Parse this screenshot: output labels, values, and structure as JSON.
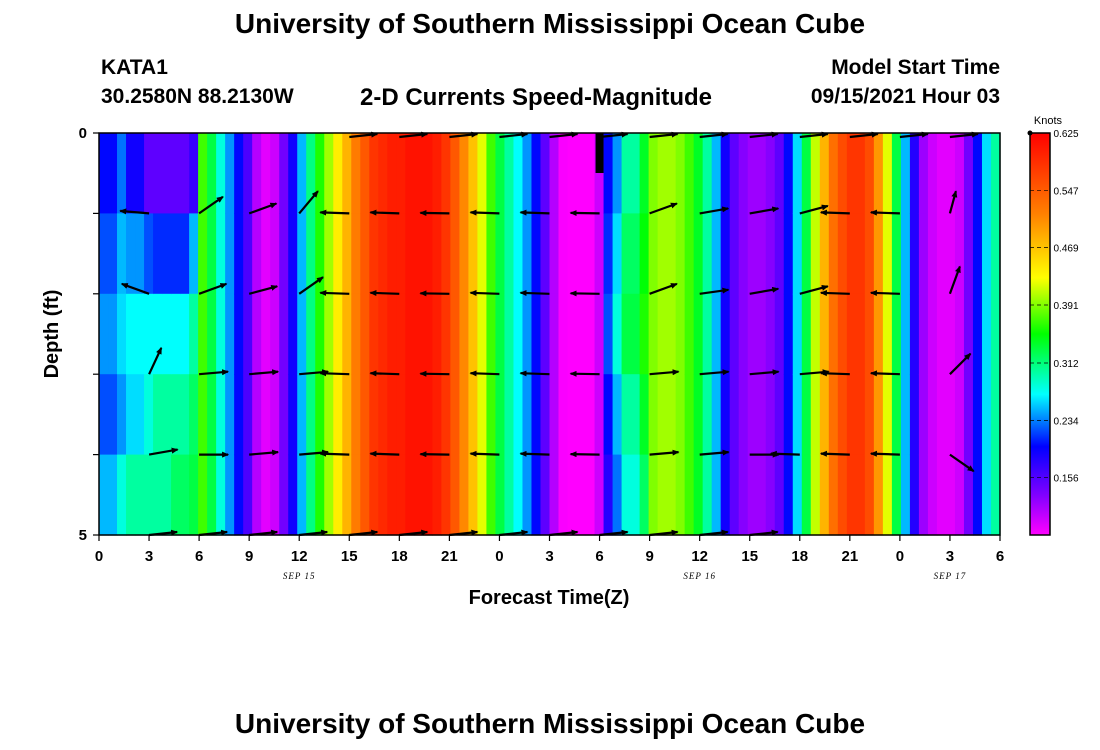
{
  "header": {
    "title": "University of Southern Mississippi Ocean Cube",
    "station": "KATA1",
    "coordinates": "30.2580N  88.2130W",
    "subtitle": "2-D Currents Speed-Magnitude",
    "model_start_label": "Model Start Time",
    "model_start_value": "09/15/2021 Hour 03"
  },
  "footer": {
    "title": "University of Southern Mississippi Ocean Cube"
  },
  "chart_data": {
    "type": "heatmap",
    "title": "2-D Currents Speed-Magnitude",
    "xlabel": "Forecast Time(Z)",
    "ylabel": "Depth (ft)",
    "x_ticks": [
      "0",
      "3",
      "6",
      "9",
      "12",
      "15",
      "18",
      "21",
      "0",
      "3",
      "6",
      "9",
      "12",
      "15",
      "18",
      "21",
      "0",
      "3",
      "6"
    ],
    "date_labels": [
      {
        "text": "SEP 15",
        "hour": 12
      },
      {
        "text": "SEP 16",
        "hour": 36
      },
      {
        "text": "SEP 17",
        "hour": 51
      }
    ],
    "xlim": [
      0,
      54
    ],
    "ylim": [
      0,
      5
    ],
    "y_ticks": [
      "0",
      "5"
    ],
    "depth_bins": 5,
    "colorbar": {
      "label": "Knots",
      "range": [
        0.078,
        0.625
      ],
      "tick_labels": [
        "0.625",
        "0.547",
        "0.469",
        "0.391",
        "0.312",
        "0.234",
        "0.156"
      ]
    },
    "speed_profile": [
      0.28,
      0.3,
      0.25,
      0.2,
      0.17,
      0.17,
      0.18,
      0.22,
      0.27,
      0.3,
      0.34,
      0.37,
      0.33,
      0.28,
      0.24,
      0.2,
      0.16,
      0.11,
      0.09,
      0.1,
      0.14,
      0.19,
      0.25,
      0.31,
      0.36,
      0.4,
      0.44,
      0.48,
      0.52,
      0.55,
      0.58,
      0.59,
      0.6,
      0.6,
      0.61,
      0.61,
      0.61,
      0.6,
      0.58,
      0.55,
      0.51,
      0.47,
      0.42,
      0.37,
      0.33,
      0.3,
      0.27,
      0.24,
      0.2,
      0.15,
      0.11,
      0.08,
      0.06,
      0.06,
      0.07,
      0.1,
      0.18,
      0.27,
      0.33,
      0.36,
      0.38,
      0.39,
      0.4,
      0.4,
      0.39,
      0.37,
      0.34,
      0.3,
      0.25,
      0.19,
      0.15,
      0.13,
      0.12,
      0.12,
      0.13,
      0.15,
      0.2,
      0.26,
      0.33,
      0.41,
      0.48,
      0.53,
      0.56,
      0.58,
      0.58,
      0.56,
      0.5,
      0.42,
      0.33,
      0.25,
      0.18,
      0.12,
      0.1,
      0.09,
      0.09,
      0.1,
      0.14,
      0.2,
      0.26,
      0.3
    ],
    "left_region": {
      "hour_range": [
        0,
        6
      ],
      "rows": [
        [
          0.2,
          0.23,
          0.19,
          0.15,
          0.15,
          0.15,
          0.17
        ],
        [
          0.22,
          0.25,
          0.24,
          0.22,
          0.21,
          0.21,
          0.25
        ],
        [
          0.24,
          0.26,
          0.27,
          0.27,
          0.27,
          0.27,
          0.3
        ],
        [
          0.22,
          0.24,
          0.26,
          0.28,
          0.3,
          0.3,
          0.32
        ],
        [
          0.25,
          0.28,
          0.3,
          0.3,
          0.3,
          0.32,
          0.33
        ]
      ]
    },
    "late_region": {
      "hour_range": [
        30,
        33
      ],
      "rows": [
        [
          0.2,
          0.24,
          0.3,
          0.34
        ],
        [
          0.21,
          0.26,
          0.32,
          0.35
        ],
        [
          0.22,
          0.28,
          0.33,
          0.36
        ],
        [
          0.2,
          0.25,
          0.3,
          0.34
        ],
        [
          0.18,
          0.23,
          0.28,
          0.32
        ]
      ]
    },
    "vectors": {
      "hours": [
        3,
        6,
        9,
        12,
        15,
        18,
        21,
        24,
        27,
        30,
        33,
        36,
        39,
        42,
        45,
        48,
        51
      ],
      "rows": [
        {
          "depth": 1,
          "angles": [
            185,
            -35,
            -20,
            -50,
            182,
            182,
            181,
            182,
            182,
            181,
            -20,
            -10,
            -10,
            -15,
            182,
            182,
            -75
          ],
          "lengths": [
            29,
            29,
            29,
            29,
            29,
            29,
            29,
            29,
            29,
            29,
            29,
            29,
            29,
            29,
            29,
            29,
            23
          ]
        },
        {
          "depth": 2,
          "angles": [
            200,
            -20,
            -15,
            -35,
            182,
            182,
            181,
            182,
            182,
            181,
            -20,
            -8,
            -10,
            -15,
            182,
            182,
            -70
          ],
          "lengths": [
            29,
            29,
            29,
            29,
            29,
            29,
            29,
            29,
            29,
            29,
            29,
            29,
            29,
            29,
            29,
            29,
            29
          ]
        },
        {
          "depth": 3,
          "angles": [
            -65,
            -5,
            -5,
            -5,
            182,
            182,
            181,
            182,
            182,
            181,
            -5,
            -5,
            -5,
            -5,
            182,
            182,
            -45
          ],
          "lengths": [
            29,
            29,
            29,
            29,
            29,
            29,
            29,
            29,
            29,
            29,
            29,
            29,
            29,
            29,
            29,
            29,
            29
          ]
        },
        {
          "depth": 4,
          "angles": [
            -10,
            0,
            -5,
            -5,
            182,
            182,
            181,
            182,
            182,
            181,
            -5,
            -5,
            0,
            182,
            182,
            182,
            35
          ],
          "lengths": [
            29,
            29,
            29,
            29,
            29,
            29,
            29,
            29,
            29,
            29,
            29,
            29,
            29,
            29,
            29,
            29,
            29
          ]
        }
      ]
    }
  }
}
